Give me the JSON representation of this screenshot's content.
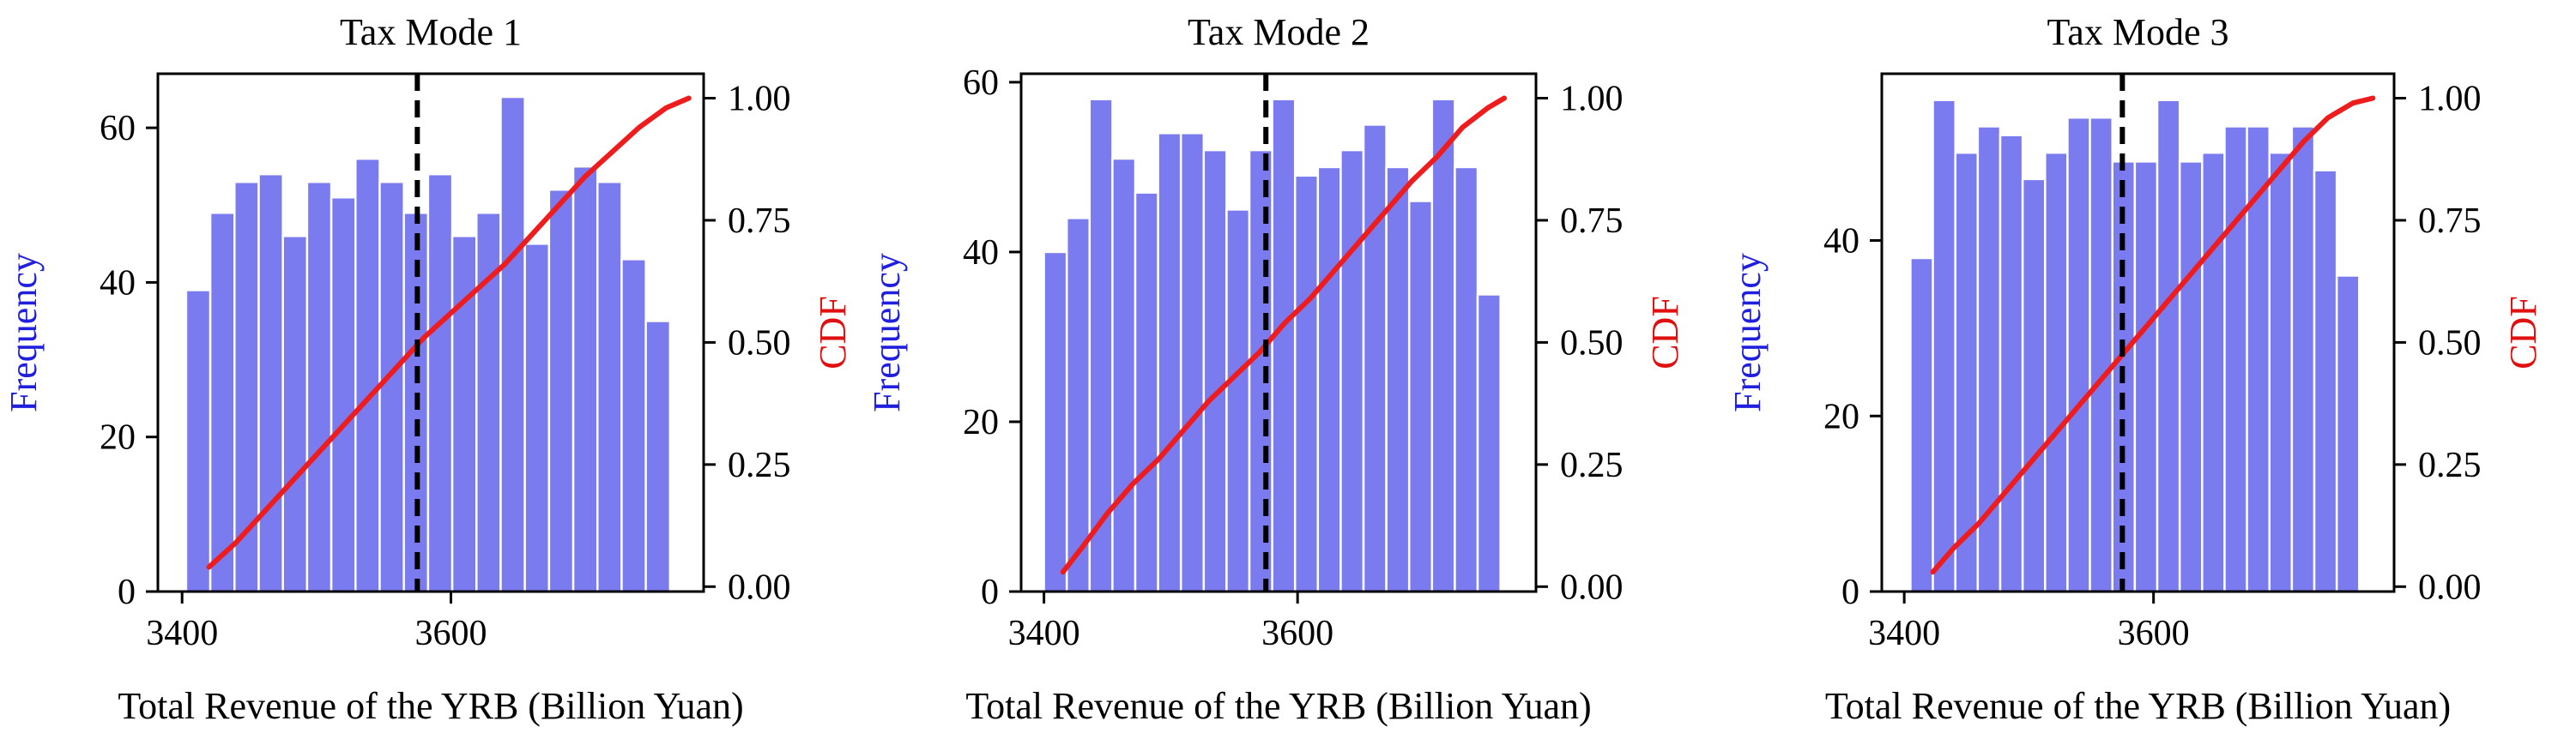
{
  "chart_data": [
    {
      "type": "bar",
      "title": "Tax Mode 1",
      "xlabel": "Total Revenue of the YRB (Billion Yuan)",
      "ylabel": "Frequency",
      "y2label": "CDF",
      "xlim": [
        3382,
        3788
      ],
      "ylim": [
        0,
        67
      ],
      "y2lim": [
        -0.01,
        1.05
      ],
      "xticks": [
        "3400",
        "3600"
      ],
      "yticks": [
        "0",
        "20",
        "40",
        "60"
      ],
      "y2ticks": [
        "0.00",
        "0.25",
        "0.50",
        "0.75",
        "1.00"
      ],
      "bin_edges": [
        3403,
        3421,
        3439,
        3457,
        3475,
        3493,
        3511,
        3529,
        3547,
        3565,
        3583,
        3601,
        3619,
        3637,
        3655,
        3673,
        3691,
        3709,
        3727,
        3745,
        3763
      ],
      "frequency": [
        39,
        49,
        53,
        54,
        46,
        53,
        51,
        56,
        53,
        49,
        54,
        46,
        49,
        64,
        45,
        52,
        55,
        53,
        43,
        35
      ],
      "cdf": {
        "x": [
          3420,
          3440,
          3460,
          3480,
          3500,
          3520,
          3540,
          3560,
          3580,
          3600,
          3620,
          3640,
          3660,
          3680,
          3700,
          3720,
          3740,
          3760,
          3777
        ],
        "y": [
          0.04,
          0.09,
          0.15,
          0.21,
          0.27,
          0.33,
          0.39,
          0.45,
          0.51,
          0.56,
          0.61,
          0.66,
          0.72,
          0.78,
          0.84,
          0.89,
          0.94,
          0.98,
          1.0
        ]
      },
      "reference_line_x": 3575,
      "colors": {
        "bars": "#7b7bf0",
        "cdf": "#ee1c1c",
        "ylabel": "#1f1fdd",
        "y2label": "#e01010",
        "reference_line": "#000000"
      }
    },
    {
      "type": "bar",
      "title": "Tax Mode 2",
      "xlabel": "Total Revenue of the YRB (Billion Yuan)",
      "ylabel": "Frequency",
      "y2label": "CDF",
      "xlim": [
        3382,
        3788
      ],
      "ylim": [
        0,
        61
      ],
      "y2lim": [
        -0.01,
        1.05
      ],
      "xticks": [
        "3400",
        "3600"
      ],
      "yticks": [
        "0",
        "20",
        "40",
        "60"
      ],
      "y2ticks": [
        "0.00",
        "0.25",
        "0.50",
        "0.75",
        "1.00"
      ],
      "bin_edges": [
        3400,
        3418,
        3436,
        3454,
        3472,
        3490,
        3508,
        3526,
        3544,
        3562,
        3580,
        3598,
        3616,
        3634,
        3652,
        3670,
        3688,
        3706,
        3724,
        3742,
        3760
      ],
      "frequency": [
        40,
        44,
        58,
        51,
        47,
        54,
        54,
        52,
        45,
        52,
        58,
        49,
        50,
        52,
        55,
        50,
        46,
        58,
        50,
        35
      ],
      "cdf": {
        "x": [
          3415,
          3430,
          3450,
          3470,
          3490,
          3510,
          3530,
          3550,
          3570,
          3590,
          3610,
          3630,
          3650,
          3670,
          3690,
          3710,
          3730,
          3750,
          3763
        ],
        "y": [
          0.03,
          0.08,
          0.15,
          0.21,
          0.26,
          0.32,
          0.38,
          0.43,
          0.48,
          0.54,
          0.59,
          0.65,
          0.71,
          0.77,
          0.83,
          0.88,
          0.94,
          0.98,
          1.0
        ]
      },
      "reference_line_x": 3575,
      "colors": {
        "bars": "#7b7bf0",
        "cdf": "#ee1c1c",
        "ylabel": "#1f1fdd",
        "y2label": "#e01010",
        "reference_line": "#000000"
      }
    },
    {
      "type": "bar",
      "title": "Tax Mode 3",
      "xlabel": "Total Revenue of the YRB (Billion Yuan)",
      "ylabel": "Frequency",
      "y2label": "CDF",
      "xlim": [
        3382,
        3793
      ],
      "ylim": [
        0,
        59
      ],
      "y2lim": [
        -0.01,
        1.05
      ],
      "xticks": [
        "3400",
        "3600"
      ],
      "yticks": [
        "0",
        "20",
        "40"
      ],
      "y2ticks": [
        "0.00",
        "0.25",
        "0.50",
        "0.75",
        "1.00"
      ],
      "bin_edges": [
        3405,
        3423,
        3441,
        3459,
        3477,
        3495,
        3513,
        3531,
        3549,
        3567,
        3585,
        3603,
        3621,
        3639,
        3657,
        3675,
        3693,
        3711,
        3729,
        3747,
        3765
      ],
      "frequency": [
        38,
        56,
        50,
        53,
        52,
        47,
        50,
        54,
        54,
        49,
        49,
        56,
        49,
        50,
        53,
        53,
        50,
        53,
        48,
        36
      ],
      "cdf": {
        "x": [
          3423,
          3440,
          3460,
          3480,
          3500,
          3520,
          3540,
          3560,
          3580,
          3600,
          3620,
          3640,
          3660,
          3680,
          3700,
          3720,
          3740,
          3760,
          3776
        ],
        "y": [
          0.03,
          0.08,
          0.13,
          0.19,
          0.25,
          0.31,
          0.37,
          0.43,
          0.49,
          0.55,
          0.61,
          0.67,
          0.73,
          0.79,
          0.85,
          0.91,
          0.96,
          0.99,
          1.0
        ]
      },
      "reference_line_x": 3575,
      "colors": {
        "bars": "#7b7bf0",
        "cdf": "#ee1c1c",
        "ylabel": "#1f1fdd",
        "y2label": "#e01010",
        "reference_line": "#000000"
      }
    }
  ]
}
